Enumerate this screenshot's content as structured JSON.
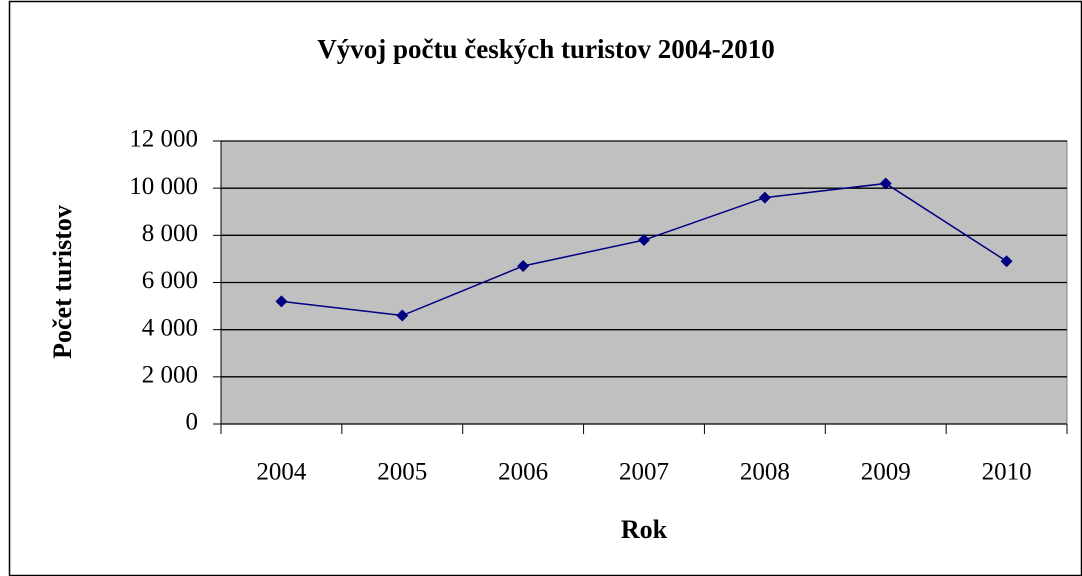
{
  "chart_data": {
    "type": "line",
    "title": "Vývoj počtu českých turistov 2004-2010",
    "x_label": "Rok",
    "y_label": "Počet turistov",
    "categories": [
      "2004",
      "2005",
      "2006",
      "2007",
      "2008",
      "2009",
      "2010"
    ],
    "series": [
      {
        "name": "Počet turistov",
        "color": "#000080",
        "values": [
          5200,
          4600,
          6700,
          7800,
          9600,
          10200,
          6900
        ]
      }
    ],
    "ylim": [
      0,
      12000
    ],
    "yticks": [
      0,
      {
        "value": 2000,
        "label": "2 000"
      },
      {
        "value": 4000,
        "label": "4 000"
      },
      {
        "value": 6000,
        "label": "6 000"
      },
      {
        "value": 8000,
        "label": "8 000"
      },
      {
        "value": 10000,
        "label": "10 000"
      },
      {
        "value": 12000,
        "label": "12 000"
      }
    ],
    "grid": true,
    "plot_background": "#c0c0c0"
  }
}
